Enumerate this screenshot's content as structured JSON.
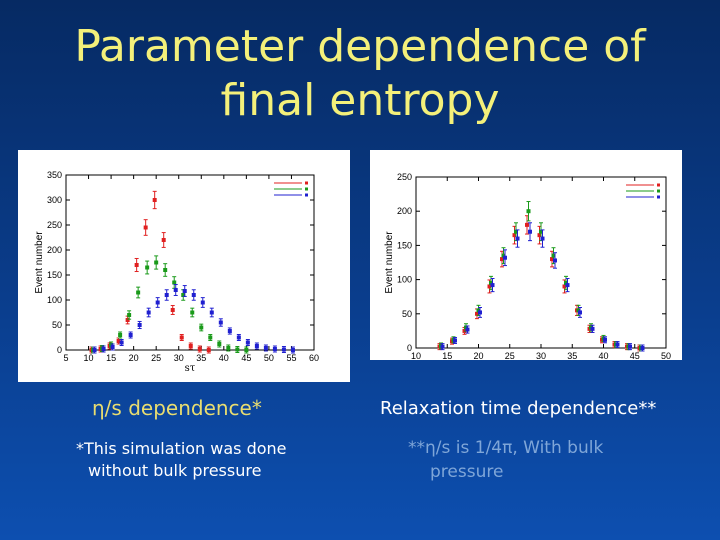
{
  "slide": {
    "title_line1": "Parameter dependence of",
    "title_line2": "final entropy",
    "caption_left": "η/s dependence*",
    "caption_right": "Relaxation time dependence**",
    "note_left_line1": "*This simulation was done",
    "note_left_line2": "without bulk pressure",
    "note_right_line1": "**η/s is 1/4π, With bulk",
    "note_right_line2": "pressure"
  },
  "chart_data": [
    {
      "type": "scatter",
      "xlabel": "sτ",
      "ylabel": "Event number",
      "xlim": [
        5,
        60
      ],
      "ylim": [
        0,
        350
      ],
      "xticks": [
        5,
        10,
        15,
        20,
        25,
        30,
        35,
        40,
        45,
        50,
        55,
        60
      ],
      "yticks": [
        0,
        50,
        100,
        150,
        200,
        250,
        300,
        350
      ],
      "legend_position": "top-right",
      "series": [
        {
          "color": "#e02020",
          "x": [
            11,
            13,
            15,
            17,
            19,
            21,
            23,
            25,
            27,
            29,
            31,
            33,
            35,
            37
          ],
          "y": [
            0,
            2,
            8,
            18,
            60,
            170,
            245,
            300,
            220,
            80,
            25,
            8,
            2,
            0
          ]
        },
        {
          "color": "#1a9a1a",
          "x": [
            11,
            13,
            15,
            17,
            19,
            21,
            23,
            25,
            27,
            29,
            31,
            33,
            35,
            37,
            39,
            41,
            43,
            45
          ],
          "y": [
            0,
            3,
            10,
            30,
            70,
            115,
            165,
            175,
            160,
            135,
            110,
            75,
            45,
            25,
            12,
            4,
            1,
            0
          ]
        },
        {
          "color": "#2020d0",
          "x": [
            11,
            13,
            15,
            17,
            19,
            21,
            23,
            25,
            27,
            29,
            31,
            33,
            35,
            37,
            39,
            41,
            43,
            45,
            47,
            49,
            51,
            53,
            55
          ],
          "y": [
            0,
            2,
            6,
            15,
            30,
            50,
            75,
            95,
            110,
            120,
            118,
            110,
            95,
            75,
            55,
            38,
            25,
            15,
            8,
            4,
            2,
            1,
            0
          ]
        }
      ]
    },
    {
      "type": "scatter",
      "xlabel": "sτ",
      "ylabel": "Event number",
      "xlim": [
        10,
        50
      ],
      "ylim": [
        0,
        250
      ],
      "xticks": [
        10,
        15,
        20,
        25,
        30,
        35,
        40,
        45,
        50
      ],
      "yticks": [
        0,
        50,
        100,
        150,
        200,
        250
      ],
      "legend_position": "top-right",
      "series": [
        {
          "color": "#e02020",
          "x": [
            14,
            16,
            18,
            20,
            22,
            24,
            26,
            28,
            30,
            32,
            34,
            36,
            38,
            40,
            42,
            44,
            46
          ],
          "y": [
            2,
            10,
            25,
            50,
            90,
            130,
            165,
            180,
            165,
            130,
            90,
            55,
            28,
            12,
            5,
            2,
            0
          ]
        },
        {
          "color": "#1a9a1a",
          "x": [
            14,
            16,
            18,
            20,
            22,
            24,
            26,
            28,
            30,
            32,
            34,
            36,
            38,
            40,
            42,
            44,
            46
          ],
          "y": [
            3,
            12,
            30,
            55,
            95,
            135,
            170,
            200,
            170,
            135,
            95,
            55,
            30,
            14,
            5,
            2,
            0
          ]
        },
        {
          "color": "#2020d0",
          "x": [
            14,
            16,
            18,
            20,
            22,
            24,
            26,
            28,
            30,
            32,
            34,
            36,
            38,
            40,
            42,
            44,
            46
          ],
          "y": [
            2,
            11,
            27,
            52,
            92,
            132,
            160,
            170,
            160,
            128,
            92,
            52,
            28,
            12,
            5,
            2,
            0
          ]
        }
      ]
    }
  ]
}
